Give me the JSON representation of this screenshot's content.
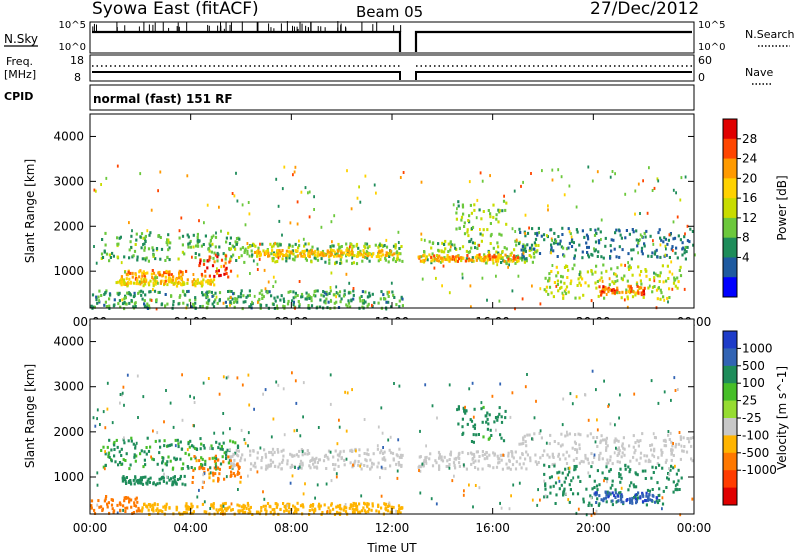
{
  "header": {
    "station": "Syowa East (fitACF)",
    "beam": "Beam 05",
    "date": "27/Dec/2012"
  },
  "top_panels": {
    "nsky_label": "N.Sky",
    "nsearch_label": "N.Search",
    "count_ticks_left": [
      "10^5",
      "10^0"
    ],
    "count_ticks_right": [
      "10^5",
      "10^0"
    ],
    "freq_label": "Freq.",
    "freq_unit": "[MHz]",
    "freq_ticks": [
      "18",
      "8"
    ],
    "nave_ticks": [
      "60",
      "0"
    ],
    "nave_label": "Nave",
    "cpid_label": "CPID",
    "cpid_text": "normal (fast) 151 RF"
  },
  "chart_data": [
    {
      "type": "heatmap",
      "name": "power",
      "ylabel": "Slant Range [km]",
      "y_ticks": [
        "4000",
        "3000",
        "2000",
        "1000"
      ],
      "ylim": [
        180,
        4500
      ],
      "x_ticks": [
        "00:00",
        "04:00",
        "08:00",
        "12:00",
        "16:00",
        "20:00",
        "00:00"
      ],
      "xlim_hours": [
        0,
        24
      ],
      "data_gap_hours": [
        12.5,
        13.0
      ],
      "colorbar": {
        "label": "Power [dB]",
        "tick_labels": [
          "28",
          "24",
          "20",
          "16",
          "12",
          "8",
          "4"
        ],
        "colors": [
          "#e00000",
          "#ff4500",
          "#ff9a00",
          "#ffd200",
          "#c8dc00",
          "#6cc83c",
          "#1e8c5a",
          "#1e5aa0",
          "#0000ff"
        ]
      },
      "bands": [
        {
          "start_h": 0.4,
          "end_h": 5.9,
          "range_km": [
            1250,
            1900
          ],
          "level": 10
        },
        {
          "start_h": 1.2,
          "end_h": 3.8,
          "range_km": [
            850,
            1050
          ],
          "level": 22
        },
        {
          "start_h": 1.0,
          "end_h": 5.0,
          "range_km": [
            700,
            850
          ],
          "level": 18
        },
        {
          "start_h": 4.3,
          "end_h": 5.6,
          "range_km": [
            900,
            1400
          ],
          "level": 27
        },
        {
          "start_h": 0.0,
          "end_h": 12.4,
          "range_km": [
            200,
            600
          ],
          "level": 9
        },
        {
          "start_h": 5.5,
          "end_h": 12.4,
          "range_km": [
            1200,
            1650
          ],
          "level": 12
        },
        {
          "start_h": 6.5,
          "end_h": 12.2,
          "range_km": [
            1350,
            1500
          ],
          "level": 20
        },
        {
          "start_h": 13.0,
          "end_h": 17.8,
          "range_km": [
            1200,
            1700
          ],
          "level": 12
        },
        {
          "start_h": 13.0,
          "end_h": 17.0,
          "range_km": [
            1250,
            1400
          ],
          "level": 22
        },
        {
          "start_h": 14.5,
          "end_h": 16.5,
          "range_km": [
            1800,
            2600
          ],
          "level": 12
        },
        {
          "start_h": 17.0,
          "end_h": 24.0,
          "range_km": [
            1300,
            2000
          ],
          "level": 6
        },
        {
          "start_h": 18.0,
          "end_h": 23.5,
          "range_km": [
            400,
            1200
          ],
          "level": 14
        },
        {
          "start_h": 20.2,
          "end_h": 22.0,
          "range_km": [
            500,
            700
          ],
          "level": 25
        }
      ]
    },
    {
      "type": "heatmap",
      "name": "velocity",
      "ylabel": "Slant Range [km]",
      "xlabel": "Time UT",
      "y_ticks": [
        "4000",
        "3000",
        "2000",
        "1000"
      ],
      "ylim": [
        180,
        4500
      ],
      "x_ticks": [
        "00:00",
        "04:00",
        "08:00",
        "12:00",
        "16:00",
        "20:00",
        "00:00"
      ],
      "xlim_hours": [
        0,
        24
      ],
      "data_gap_hours": [
        12.5,
        13.0
      ],
      "colorbar": {
        "label": "Velocity [m s^-1]",
        "tick_labels": [
          "1000",
          "500",
          "100",
          "25",
          "-25",
          "-100",
          "-500",
          "-1000"
        ],
        "colors": [
          "#1e3cc8",
          "#3264b4",
          "#1e8c5a",
          "#46be28",
          "#96dc32",
          "#c8c8c8",
          "#ffb400",
          "#ff7800",
          "#ff3c00",
          "#e00000"
        ]
      },
      "bands": [
        {
          "start_h": 0.4,
          "end_h": 5.9,
          "range_km": [
            1200,
            1900
          ],
          "level": 120
        },
        {
          "start_h": 1.2,
          "end_h": 3.8,
          "range_km": [
            850,
            1050
          ],
          "level": 200
        },
        {
          "start_h": 4.0,
          "end_h": 6.0,
          "range_km": [
            900,
            1500
          ],
          "level": -150
        },
        {
          "start_h": 0.0,
          "end_h": 2.0,
          "range_km": [
            200,
            600
          ],
          "level": -200
        },
        {
          "start_h": 2.0,
          "end_h": 12.4,
          "range_km": [
            200,
            450
          ],
          "level": -60
        },
        {
          "start_h": 5.5,
          "end_h": 12.4,
          "range_km": [
            1200,
            1650
          ],
          "level": 0
        },
        {
          "start_h": 13.0,
          "end_h": 17.5,
          "range_km": [
            1200,
            1600
          ],
          "level": 0
        },
        {
          "start_h": 14.5,
          "end_h": 16.5,
          "range_km": [
            1800,
            2600
          ],
          "level": 150
        },
        {
          "start_h": 17.0,
          "end_h": 24.0,
          "range_km": [
            1300,
            2000
          ],
          "level": 0
        },
        {
          "start_h": 18.0,
          "end_h": 23.5,
          "range_km": [
            400,
            1300
          ],
          "level": 200
        },
        {
          "start_h": 20.0,
          "end_h": 22.5,
          "range_km": [
            450,
            700
          ],
          "level": 600
        }
      ]
    }
  ]
}
